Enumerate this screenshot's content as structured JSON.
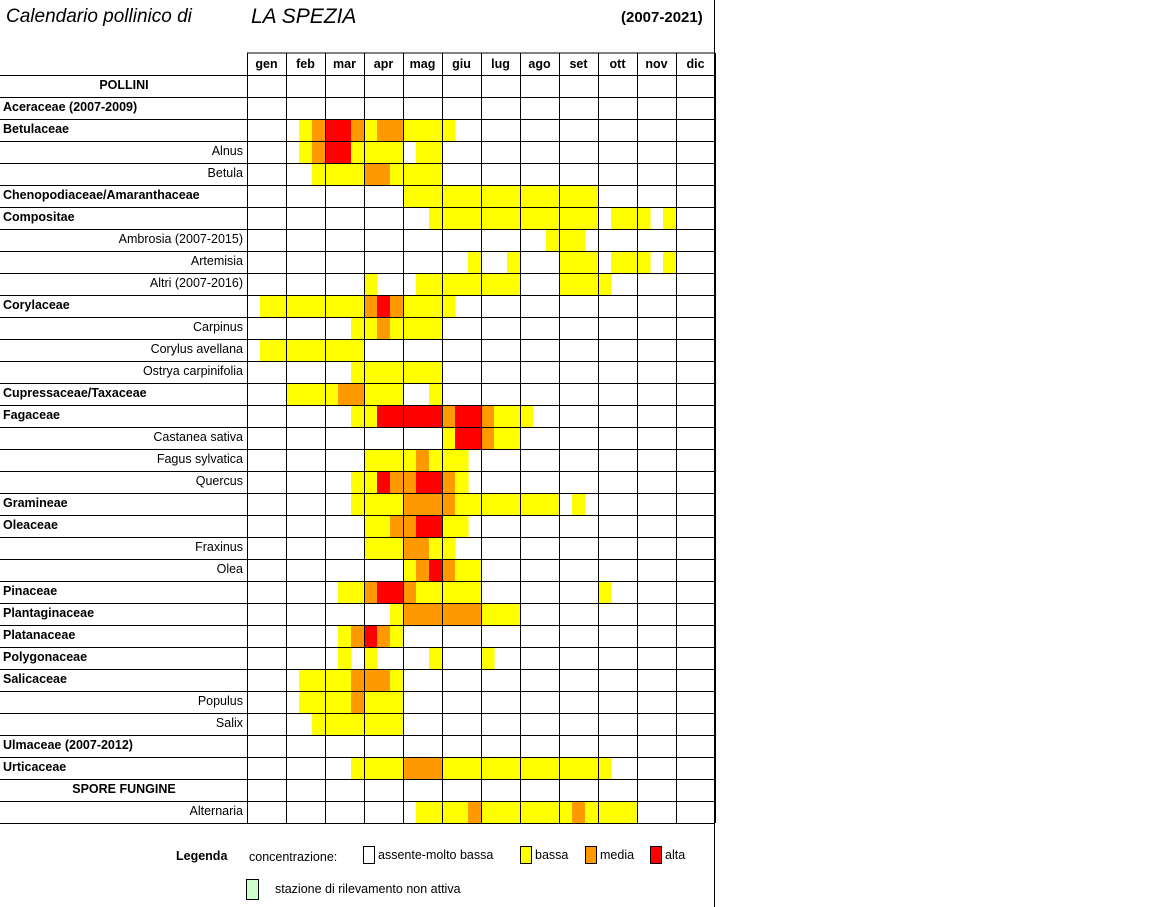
{
  "header": {
    "title_left": "Calendario pollinico di",
    "city": "LA SPEZIA",
    "years": "(2007-2021)"
  },
  "colors": {
    "0": "#ffffff",
    "1": "#ffff00",
    "2": "#ff9900",
    "3": "#ff0000",
    "inactive": "#ccffcc",
    "grid": "#000000"
  },
  "chart_data": {
    "type": "heatmap",
    "months": [
      "gen",
      "feb",
      "mar",
      "apr",
      "mag",
      "giu",
      "lug",
      "ago",
      "set",
      "ott",
      "nov",
      "dic"
    ],
    "subdivisions_per_month": 3,
    "scale": {
      "0": "assente-molto bassa",
      "1": "bassa",
      "2": "media",
      "3": "alta"
    },
    "rows": [
      {
        "label": "POLLINI",
        "style": "section",
        "values": ""
      },
      {
        "label": "Aceraceae (2007-2009)",
        "style": "family",
        "values": ""
      },
      {
        "label": "Betulaceae",
        "style": "family",
        "values": "000012332122111100000000000000000000"
      },
      {
        "label": "Alnus",
        "style": "sub",
        "values": "000012331111011000000000000000000000"
      },
      {
        "label": "Betula",
        "style": "sub",
        "values": "000001111221111000000000000000000000"
      },
      {
        "label": "Chenopodiaceae/Amaranthaceae",
        "style": "family",
        "values": "000000000000111111111111111000000000"
      },
      {
        "label": "Compositae",
        "style": "family",
        "values": "000000000000001111111111111011101000"
      },
      {
        "label": "Ambrosia (2007-2015)",
        "style": "sub",
        "values": "000000000000000000000001110000000000"
      },
      {
        "label": "Artemisia",
        "style": "sub",
        "values": "000000000000000001001000111011101000"
      },
      {
        "label": "Altri (2007-2016)",
        "style": "sub",
        "values": "000000000100011111111000111100000000"
      },
      {
        "label": "Corylaceae",
        "style": "family",
        "values": "011111111232111100000000000000000000"
      },
      {
        "label": "Carpinus",
        "style": "sub",
        "values": "000000001121111000000000000000000000"
      },
      {
        "label": "Corylus avellana",
        "style": "sub",
        "values": "011111111000000000000000000000000000"
      },
      {
        "label": "Ostrya carpinifolia",
        "style": "sub",
        "values": "000000001111111000000000000000000000"
      },
      {
        "label": "Cupressaceae/Taxaceae",
        "style": "family",
        "values": "000111122111001000000000000000000000"
      },
      {
        "label": "Fagaceae",
        "style": "family",
        "values": "000000001133333233211100000000000000"
      },
      {
        "label": "Castanea sativa",
        "style": "sub",
        "values": "000000000000000133211000000000000000"
      },
      {
        "label": "Fagus sylvatica",
        "style": "sub",
        "values": "000000000111121110000000000000000000"
      },
      {
        "label": "Quercus",
        "style": "sub",
        "values": "000000001132233210000000000000000000"
      },
      {
        "label": "Gramineae",
        "style": "family",
        "values": "000000001111222211111111010000000000"
      },
      {
        "label": "Oleaceae",
        "style": "family",
        "values": "000000000112233110000000000000000000"
      },
      {
        "label": "Fraxinus",
        "style": "sub",
        "values": "000000000111221100000000000000000000"
      },
      {
        "label": "Olea",
        "style": "sub",
        "values": "000000000000123211000000000000000000"
      },
      {
        "label": "Pinaceae",
        "style": "family",
        "values": "000000011233211111000000000100000000"
      },
      {
        "label": "Plantaginaceae",
        "style": "family",
        "values": "000000000001222222111000000000000000"
      },
      {
        "label": "Platanaceae",
        "style": "family",
        "values": "000000012321000000000000000000000000"
      },
      {
        "label": "Polygonaceae",
        "style": "family",
        "values": "000000010100001000100000000000000000"
      },
      {
        "label": "Salicaceae",
        "style": "family",
        "values": "000011112221000000000000000000000000"
      },
      {
        "label": "Populus",
        "style": "sub",
        "values": "000011112111000000000000000000000000"
      },
      {
        "label": "Salix",
        "style": "sub",
        "values": "000001111111000000000000000000000000"
      },
      {
        "label": "Ulmaceae (2007-2012)",
        "style": "family",
        "values": ""
      },
      {
        "label": "Urticaceae",
        "style": "family",
        "values": "000000001111222111111111111100000000"
      },
      {
        "label": "SPORE FUNGINE",
        "style": "section",
        "values": ""
      },
      {
        "label": "Alternaria",
        "style": "sub",
        "values": "000000000000011112111111121111000000"
      }
    ]
  },
  "legend": {
    "title": "Legenda",
    "concentrazione": "concentrazione:",
    "items": [
      {
        "key": "0",
        "label": "assente-molto bassa"
      },
      {
        "key": "1",
        "label": "bassa"
      },
      {
        "key": "2",
        "label": "media"
      },
      {
        "key": "3",
        "label": "alta"
      }
    ],
    "inactive_label": "stazione di rilevamento non attiva"
  }
}
